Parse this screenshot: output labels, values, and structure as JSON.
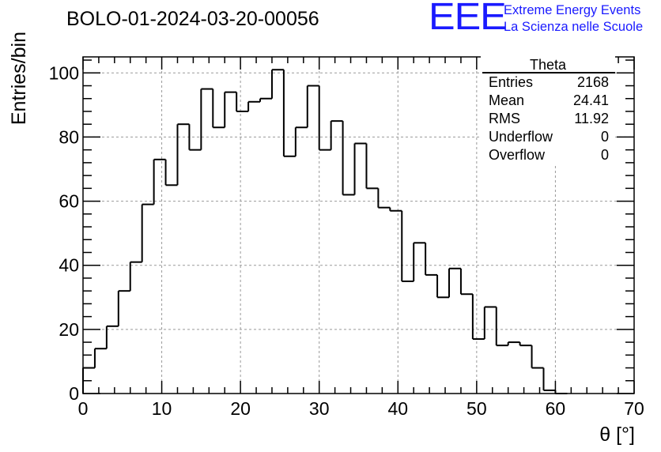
{
  "header": {
    "title": "BOLO-01-2024-03-20-00056",
    "logo_text": "EEE",
    "logo_line1": "Extreme Energy Events",
    "logo_line2": "La Scienza nelle Scuole"
  },
  "stats_box": {
    "title": "Theta",
    "rows": [
      {
        "label": "Entries",
        "value": "2168"
      },
      {
        "label": "Mean",
        "value": "24.41"
      },
      {
        "label": "RMS",
        "value": "11.92"
      },
      {
        "label": "Underflow",
        "value": "0"
      },
      {
        "label": "Overflow",
        "value": "0"
      }
    ]
  },
  "colors": {
    "logo": "#1a1aff",
    "histogram": "#000000",
    "grid": "#999999"
  },
  "chart_data": {
    "type": "bar",
    "histogram_style": "step",
    "bin_width": 1.5,
    "x_start": 0,
    "values": [
      8,
      14,
      21,
      32,
      41,
      59,
      73,
      65,
      84,
      76,
      95,
      83,
      94,
      88,
      91,
      92,
      101,
      74,
      83,
      96,
      76,
      85,
      62,
      78,
      64,
      58,
      57,
      35,
      47,
      37,
      30,
      39,
      31,
      17,
      27,
      15,
      16,
      15,
      8,
      1,
      0
    ],
    "xlabel": "θ [°]",
    "ylabel": "Entries/bin",
    "xlim": [
      0,
      70
    ],
    "ylim": [
      0,
      105
    ],
    "x_ticks": [
      0,
      10,
      20,
      30,
      40,
      50,
      60,
      70
    ],
    "y_ticks": [
      0,
      20,
      40,
      60,
      80,
      100
    ],
    "grid": true
  }
}
